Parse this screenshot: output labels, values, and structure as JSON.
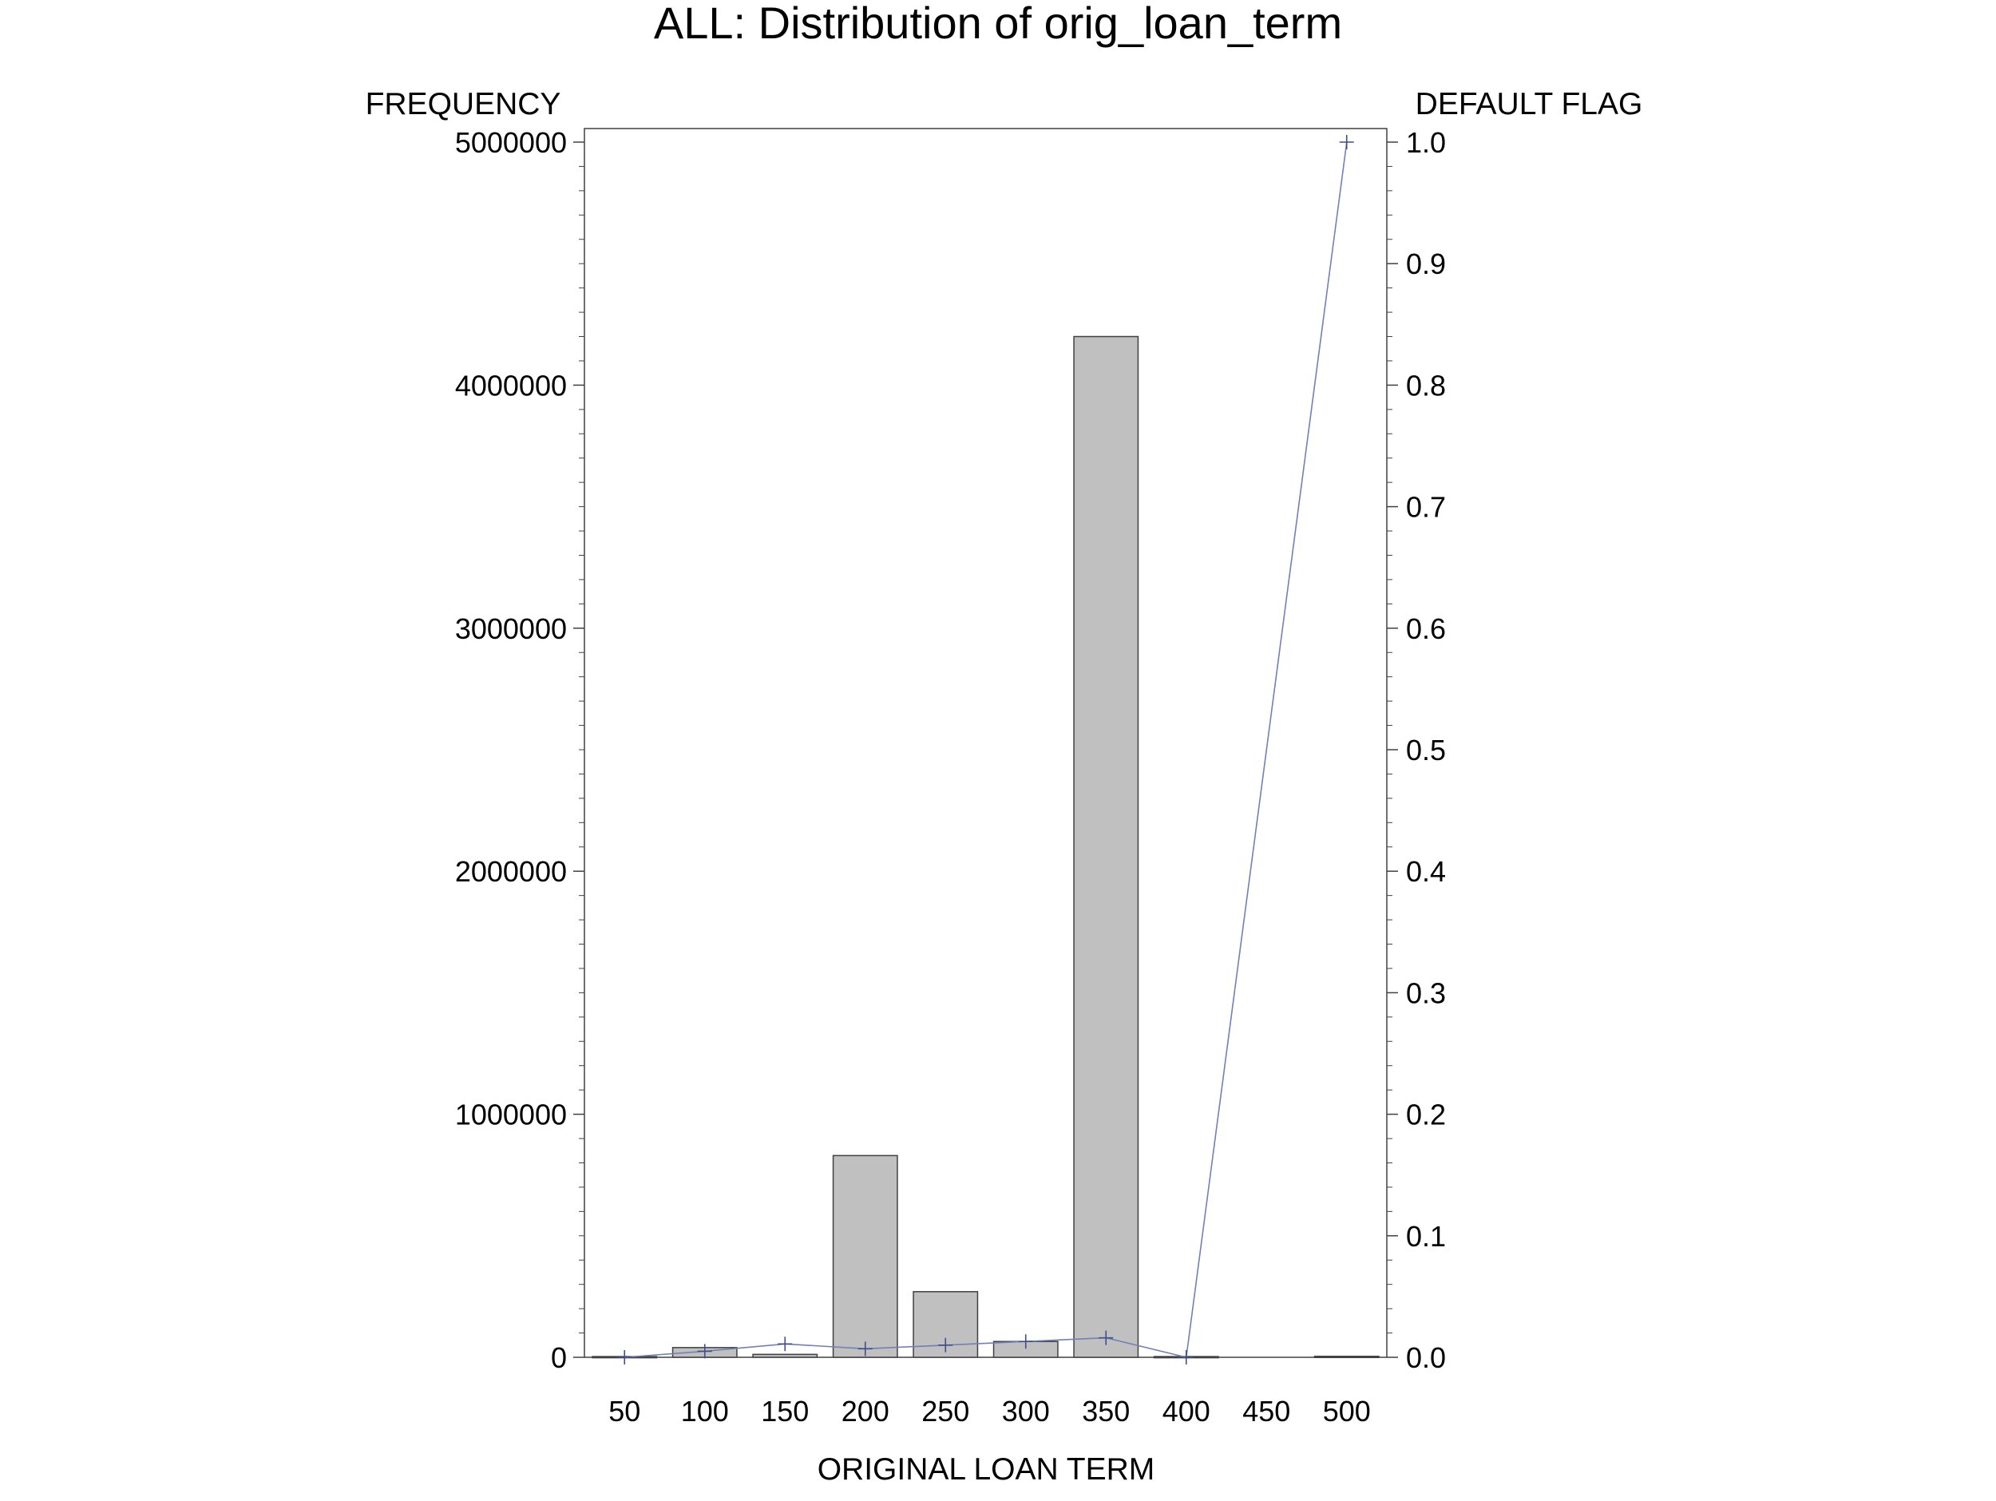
{
  "chart_data": {
    "type": "bar",
    "title": "ALL: Distribution of orig_loan_term",
    "xlabel": "ORIGINAL LOAN TERM",
    "ylabel": "FREQUENCY",
    "y2label": "DEFAULT FLAG",
    "categories": [
      "50",
      "100",
      "150",
      "200",
      "250",
      "300",
      "350",
      "400",
      "450",
      "500"
    ],
    "series": [
      {
        "type": "bar",
        "axis": "left",
        "values": [
          3000,
          40000,
          12000,
          830000,
          270000,
          65000,
          4200000,
          3000,
          0,
          4000
        ]
      },
      {
        "type": "line",
        "axis": "right",
        "marker": "plus",
        "values": [
          0.0,
          0.005,
          0.011,
          0.007,
          0.01,
          0.013,
          0.016,
          0.0,
          null,
          1.0
        ]
      }
    ],
    "ylim": [
      0,
      5000000
    ],
    "y_ticks": [
      "0",
      "1000000",
      "2000000",
      "3000000",
      "4000000",
      "5000000"
    ],
    "y2lim": [
      0,
      1
    ],
    "y2_ticks": [
      "0.0",
      "0.1",
      "0.2",
      "0.3",
      "0.4",
      "0.5",
      "0.6",
      "0.7",
      "0.8",
      "0.9",
      "1.0"
    ],
    "colors": {
      "bar_fill": "#c0c0c0",
      "bar_stroke": "#404040",
      "line": "#7080b8",
      "marker": "#404e8a",
      "axis": "#404040"
    },
    "grid": false
  }
}
